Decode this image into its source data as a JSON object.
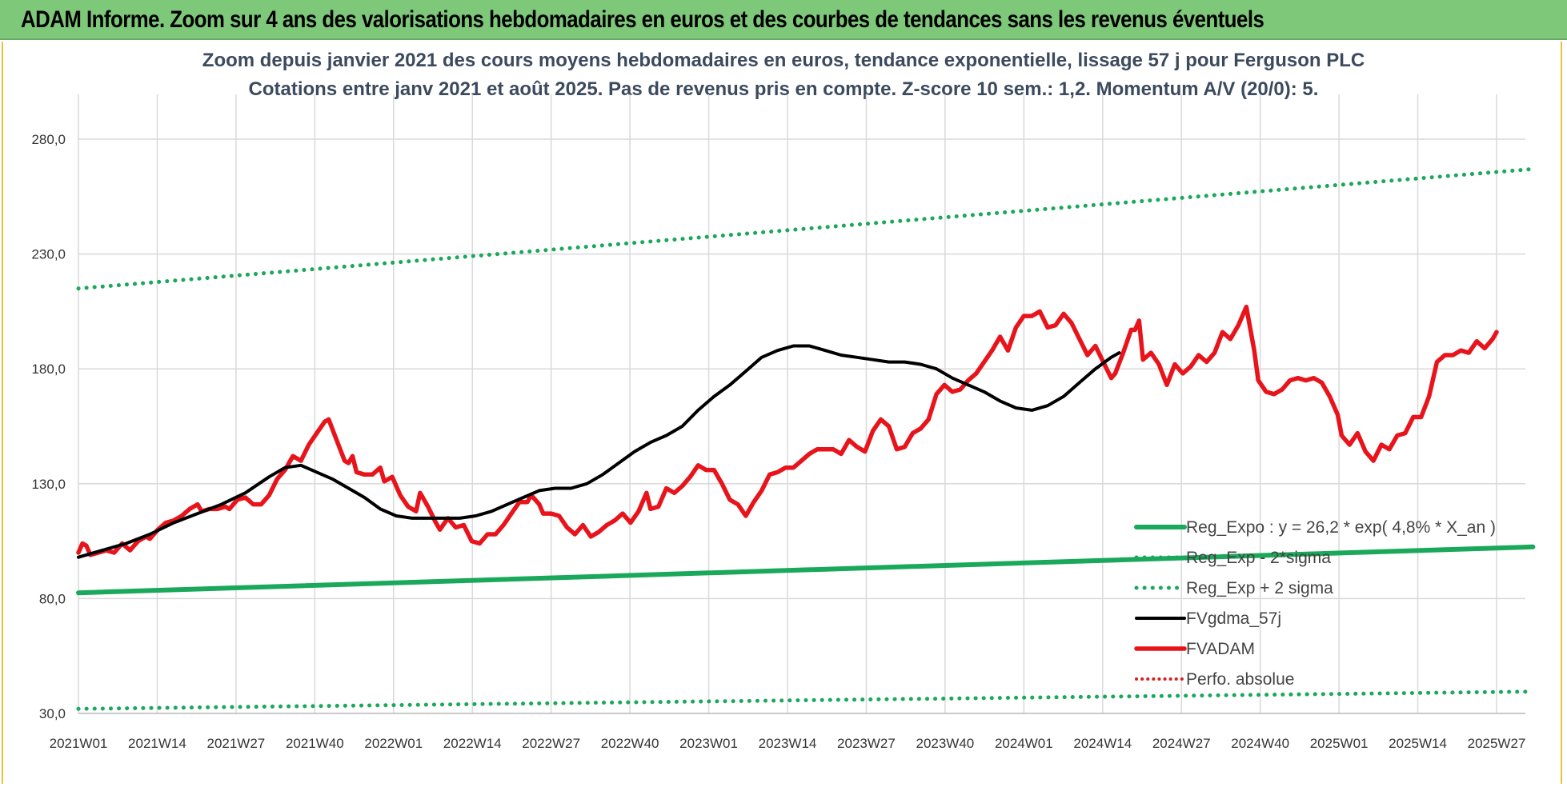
{
  "banner": {
    "title": "ADAM Informe. Zoom sur 4 ans des valorisations hebdomadaires en euros et des courbes de tendances sans les revenus éventuels"
  },
  "colors": {
    "banner_bg": "#7ec87a",
    "price": "#e8141c",
    "moving_average": "#000000",
    "regression": "#1aa85a",
    "perfo_absolue": "#d62020"
  },
  "chart_data": {
    "type": "line",
    "title": "Zoom depuis janvier 2021 des cours moyens hebdomadaires en euros, tendance exponentielle, lissage 57 j pour Ferguson PLC",
    "subtitle": "Cotations entre janv 2021 et août 2025.  Pas de revenus pris en compte. Z-score 10 sem.: 1,2. Momentum A/V (20/0): 5.",
    "y_ticks": [
      "30,0",
      "80,0",
      "130,0",
      "180,0",
      "230,0",
      "280,0"
    ],
    "y_tick_values": [
      30,
      80,
      130,
      180,
      230,
      280
    ],
    "ylim": [
      30,
      280
    ],
    "grid": true,
    "x_ticks": [
      "2021W01",
      "2021W14",
      "2021W27",
      "2021W40",
      "2022W01",
      "2022W14",
      "2022W27",
      "2022W40",
      "2023W01",
      "2023W14",
      "2023W27",
      "2023W40",
      "2024W01",
      "2024W14",
      "2024W27",
      "2024W40",
      "2025W01",
      "2025W14",
      "2025W27"
    ],
    "x_start_week": 0,
    "x_end_week": 240,
    "legend_position": "bottom-right",
    "series": [
      {
        "name": "Reg_Expo : y = 26,2 * exp( 4,8% *  X_an )",
        "style": "solid-green",
        "points": [
          [
            0,
            82.5
          ],
          [
            240,
            102.5
          ]
        ]
      },
      {
        "name": "Reg_Exp - 2*sigma",
        "style": "dotted-green",
        "points": [
          [
            0,
            32
          ],
          [
            240,
            39.5
          ]
        ]
      },
      {
        "name": "Reg_Exp + 2 sigma",
        "style": "dotted-green",
        "points": [
          [
            0,
            215
          ],
          [
            240,
            267
          ]
        ]
      },
      {
        "name": "FVgdma_57j",
        "style": "solid-black",
        "points": [
          [
            0,
            98
          ],
          [
            6,
            101
          ],
          [
            12,
            104
          ],
          [
            18,
            108
          ],
          [
            24,
            113
          ],
          [
            30,
            117
          ],
          [
            36,
            121
          ],
          [
            42,
            126
          ],
          [
            48,
            133
          ],
          [
            52,
            137
          ],
          [
            56,
            138
          ],
          [
            60,
            135
          ],
          [
            64,
            132
          ],
          [
            68,
            128
          ],
          [
            72,
            124
          ],
          [
            76,
            119
          ],
          [
            80,
            116
          ],
          [
            84,
            115
          ],
          [
            88,
            115
          ],
          [
            92,
            115
          ],
          [
            96,
            115
          ],
          [
            100,
            116
          ],
          [
            104,
            118
          ],
          [
            108,
            121
          ],
          [
            112,
            124
          ],
          [
            116,
            127
          ],
          [
            120,
            128
          ],
          [
            124,
            128
          ],
          [
            128,
            130
          ],
          [
            132,
            134
          ],
          [
            136,
            139
          ],
          [
            140,
            144
          ],
          [
            144,
            148
          ],
          [
            148,
            151
          ],
          [
            152,
            155
          ],
          [
            156,
            162
          ],
          [
            160,
            168
          ],
          [
            164,
            173
          ],
          [
            168,
            179
          ],
          [
            172,
            185
          ],
          [
            176,
            188
          ],
          [
            180,
            190
          ],
          [
            184,
            190
          ],
          [
            188,
            188
          ],
          [
            192,
            186
          ],
          [
            196,
            185
          ],
          [
            200,
            184
          ],
          [
            204,
            183
          ],
          [
            208,
            183
          ],
          [
            212,
            182
          ],
          [
            216,
            180
          ],
          [
            220,
            176
          ],
          [
            224,
            173
          ],
          [
            228,
            170
          ],
          [
            232,
            166
          ],
          [
            236,
            163
          ],
          [
            240,
            162
          ],
          [
            244,
            164
          ],
          [
            248,
            168
          ],
          [
            252,
            174
          ],
          [
            256,
            180
          ],
          [
            260,
            185
          ],
          [
            262,
            187
          ]
        ]
      },
      {
        "name": "FVADAM",
        "style": "solid-red",
        "points": [
          [
            0,
            100
          ],
          [
            1,
            104
          ],
          [
            2,
            103
          ],
          [
            3,
            99
          ],
          [
            5,
            100
          ],
          [
            7,
            101
          ],
          [
            9,
            100
          ],
          [
            11,
            104
          ],
          [
            13,
            101
          ],
          [
            15,
            105
          ],
          [
            17,
            107
          ],
          [
            18,
            106
          ],
          [
            20,
            110
          ],
          [
            22,
            113
          ],
          [
            24,
            114
          ],
          [
            26,
            116
          ],
          [
            28,
            119
          ],
          [
            30,
            121
          ],
          [
            31,
            118
          ],
          [
            33,
            119
          ],
          [
            35,
            119
          ],
          [
            37,
            120
          ],
          [
            38,
            119
          ],
          [
            40,
            123
          ],
          [
            42,
            124
          ],
          [
            44,
            121
          ],
          [
            46,
            121
          ],
          [
            48,
            125
          ],
          [
            50,
            132
          ],
          [
            52,
            136
          ],
          [
            54,
            142
          ],
          [
            56,
            140
          ],
          [
            58,
            147
          ],
          [
            60,
            152
          ],
          [
            62,
            157
          ],
          [
            63,
            158
          ],
          [
            65,
            149
          ],
          [
            67,
            140
          ],
          [
            68,
            139
          ],
          [
            69,
            142
          ],
          [
            70,
            135
          ],
          [
            72,
            134
          ],
          [
            74,
            134
          ],
          [
            76,
            137
          ],
          [
            77,
            131
          ],
          [
            79,
            133
          ],
          [
            81,
            125
          ],
          [
            83,
            120
          ],
          [
            85,
            118
          ],
          [
            86,
            126
          ],
          [
            88,
            120
          ],
          [
            90,
            113
          ],
          [
            91,
            110
          ],
          [
            93,
            115
          ],
          [
            95,
            111
          ],
          [
            97,
            112
          ],
          [
            99,
            105
          ],
          [
            101,
            104
          ],
          [
            103,
            108
          ],
          [
            105,
            108
          ],
          [
            107,
            112
          ],
          [
            109,
            117
          ],
          [
            111,
            122
          ],
          [
            113,
            122
          ],
          [
            114,
            125
          ],
          [
            116,
            121
          ],
          [
            117,
            117
          ],
          [
            119,
            117
          ],
          [
            121,
            116
          ],
          [
            123,
            111
          ],
          [
            125,
            108
          ],
          [
            127,
            112
          ],
          [
            129,
            107
          ],
          [
            131,
            109
          ],
          [
            133,
            112
          ],
          [
            135,
            114
          ],
          [
            137,
            117
          ],
          [
            139,
            113
          ],
          [
            141,
            118
          ],
          [
            143,
            126
          ],
          [
            144,
            119
          ],
          [
            146,
            120
          ],
          [
            148,
            128
          ],
          [
            150,
            126
          ],
          [
            152,
            129
          ],
          [
            154,
            133
          ],
          [
            156,
            138
          ],
          [
            158,
            136
          ],
          [
            160,
            136
          ],
          [
            162,
            130
          ],
          [
            164,
            123
          ],
          [
            166,
            121
          ],
          [
            168,
            116
          ],
          [
            170,
            122
          ],
          [
            172,
            127
          ],
          [
            174,
            134
          ],
          [
            176,
            135
          ],
          [
            178,
            137
          ],
          [
            180,
            137
          ],
          [
            182,
            140
          ],
          [
            184,
            143
          ],
          [
            186,
            145
          ],
          [
            188,
            145
          ],
          [
            190,
            145
          ],
          [
            192,
            143
          ],
          [
            194,
            149
          ],
          [
            196,
            146
          ],
          [
            198,
            144
          ],
          [
            200,
            153
          ],
          [
            202,
            158
          ],
          [
            204,
            155
          ],
          [
            206,
            145
          ],
          [
            208,
            146
          ],
          [
            210,
            152
          ],
          [
            212,
            154
          ],
          [
            214,
            158
          ],
          [
            216,
            169
          ],
          [
            218,
            173
          ],
          [
            220,
            170
          ],
          [
            222,
            171
          ],
          [
            224,
            175
          ],
          [
            226,
            178
          ],
          [
            228,
            183
          ],
          [
            230,
            188
          ],
          [
            232,
            194
          ],
          [
            234,
            188
          ],
          [
            236,
            198
          ],
          [
            238,
            203
          ],
          [
            240,
            203
          ],
          [
            242,
            205
          ],
          [
            244,
            198
          ],
          [
            246,
            199
          ],
          [
            248,
            204
          ],
          [
            250,
            200
          ],
          [
            252,
            193
          ],
          [
            254,
            186
          ],
          [
            256,
            190
          ],
          [
            258,
            183
          ],
          [
            260,
            176
          ],
          [
            261,
            178
          ],
          [
            263,
            187
          ],
          [
            265,
            197
          ],
          [
            266,
            197
          ],
          [
            267,
            201
          ],
          [
            268,
            184
          ],
          [
            270,
            187
          ],
          [
            272,
            182
          ],
          [
            274,
            173
          ],
          [
            276,
            182
          ],
          [
            278,
            178
          ],
          [
            280,
            181
          ],
          [
            282,
            186
          ],
          [
            284,
            183
          ],
          [
            286,
            187
          ],
          [
            288,
            196
          ],
          [
            290,
            193
          ],
          [
            292,
            199
          ],
          [
            294,
            207
          ],
          [
            296,
            188
          ],
          [
            297,
            175
          ],
          [
            299,
            170
          ],
          [
            301,
            169
          ],
          [
            303,
            171
          ],
          [
            305,
            175
          ],
          [
            307,
            176
          ],
          [
            309,
            175
          ],
          [
            311,
            176
          ],
          [
            313,
            174
          ],
          [
            315,
            168
          ],
          [
            317,
            160
          ],
          [
            318,
            151
          ],
          [
            320,
            147
          ],
          [
            322,
            152
          ],
          [
            324,
            144
          ],
          [
            326,
            140
          ],
          [
            328,
            147
          ],
          [
            330,
            145
          ],
          [
            332,
            151
          ],
          [
            334,
            152
          ],
          [
            336,
            159
          ],
          [
            338,
            159
          ],
          [
            340,
            168
          ],
          [
            342,
            183
          ],
          [
            344,
            186
          ],
          [
            346,
            186
          ],
          [
            348,
            188
          ],
          [
            350,
            187
          ],
          [
            352,
            192
          ],
          [
            354,
            189
          ],
          [
            356,
            193
          ],
          [
            357,
            196
          ]
        ]
      },
      {
        "name": "Perfo. absolue",
        "style": "dotted-red",
        "points": []
      }
    ]
  }
}
